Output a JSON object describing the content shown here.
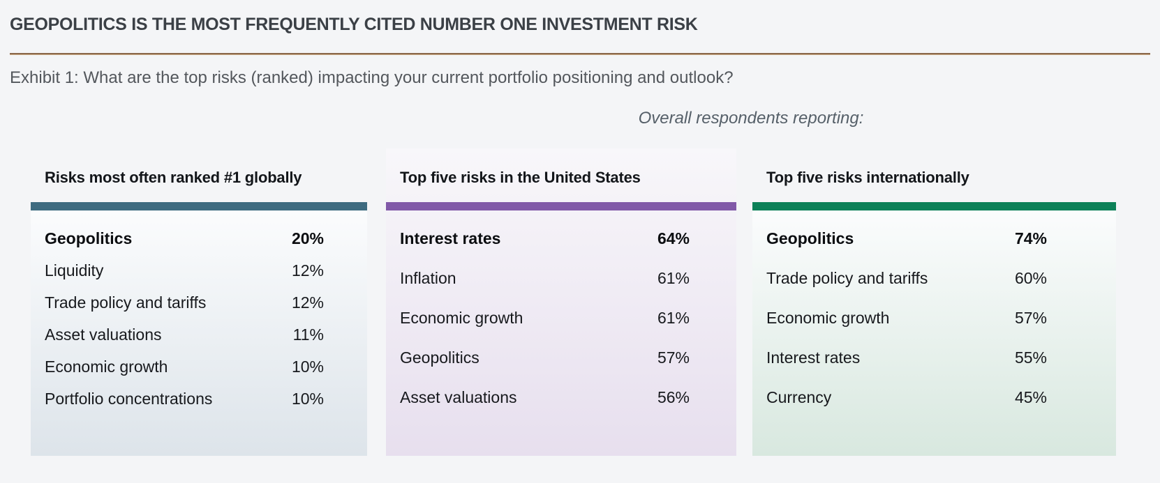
{
  "header": {
    "title": "GEOPOLITICS IS THE MOST FREQUENTLY CITED NUMBER ONE INVESTMENT RISK",
    "exhibit_caption": "Exhibit 1: What are the top risks (ranked) impacting your current portfolio positioning and outlook?",
    "note": "Overall respondents reporting:"
  },
  "colors": {
    "page_background": "#F4F5F7",
    "rule_brown": "#8A674A",
    "panel1_accent_teal": "#3E6B80",
    "panel2_accent_purple": "#8159A8",
    "panel3_accent_green": "#0C8158",
    "panel1_tint_bottom": "#DDE4EA",
    "panel2_tint_bottom": "#E7DFEE",
    "panel3_tint_bottom": "#D8E8DF"
  },
  "chart_data": [
    {
      "type": "table",
      "title": "Risks most often ranked #1 globally",
      "accent_color": "#3E6B80",
      "rows": [
        {
          "label": "Geopolitics",
          "value": "20%",
          "emphasized": true
        },
        {
          "label": "Liquidity",
          "value": "12%",
          "emphasized": false
        },
        {
          "label": "Trade policy and tariffs",
          "value": "12%",
          "emphasized": false
        },
        {
          "label": "Asset valuations",
          "value": "11%",
          "emphasized": false
        },
        {
          "label": "Economic growth",
          "value": "10%",
          "emphasized": false
        },
        {
          "label": "Portfolio concentrations",
          "value": "10%",
          "emphasized": false
        }
      ]
    },
    {
      "type": "table",
      "title": "Top five risks in the United States",
      "accent_color": "#8159A8",
      "rows": [
        {
          "label": "Interest rates",
          "value": "64%",
          "emphasized": true
        },
        {
          "label": "Inflation",
          "value": "61%",
          "emphasized": false
        },
        {
          "label": "Economic growth",
          "value": "61%",
          "emphasized": false
        },
        {
          "label": "Geopolitics",
          "value": "57%",
          "emphasized": false
        },
        {
          "label": "Asset valuations",
          "value": "56%",
          "emphasized": false
        }
      ]
    },
    {
      "type": "table",
      "title": "Top five risks internationally",
      "accent_color": "#0C8158",
      "rows": [
        {
          "label": "Geopolitics",
          "value": "74%",
          "emphasized": true
        },
        {
          "label": "Trade policy and tariffs",
          "value": "60%",
          "emphasized": false
        },
        {
          "label": "Economic growth",
          "value": "57%",
          "emphasized": false
        },
        {
          "label": "Interest rates",
          "value": "55%",
          "emphasized": false
        },
        {
          "label": "Currency",
          "value": "45%",
          "emphasized": false
        }
      ]
    }
  ]
}
